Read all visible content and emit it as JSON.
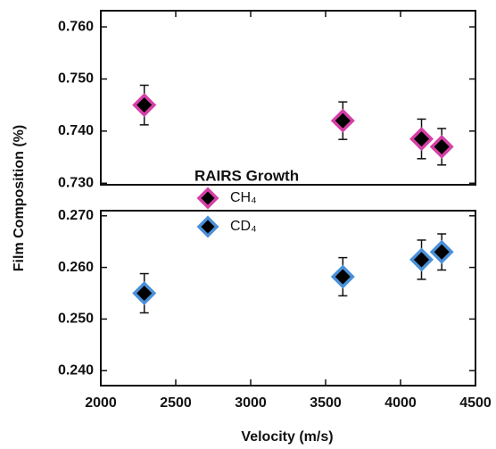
{
  "chart_data": {
    "type": "scatter",
    "x_label": "Velocity (m/s)",
    "y_label": "Film Composition (%)",
    "legend_title": "RAIRS Growth",
    "xlim": [
      2000,
      4500
    ],
    "xticks": [
      2000,
      2500,
      3000,
      3500,
      4000,
      4500
    ],
    "panels": [
      {
        "ylim": [
          0.7297,
          0.7631
        ],
        "yticks": [
          {
            "value": 0.73,
            "label": "0.730"
          },
          {
            "value": 0.74,
            "label": "0.740"
          },
          {
            "value": 0.75,
            "label": "0.750"
          },
          {
            "value": 0.76,
            "label": "0.760"
          }
        ]
      },
      {
        "ylim": [
          0.2371,
          0.271
        ],
        "yticks": [
          {
            "value": 0.24,
            "label": "0.240"
          },
          {
            "value": 0.25,
            "label": "0.250"
          },
          {
            "value": 0.26,
            "label": "0.260"
          },
          {
            "value": 0.27,
            "label": "0.270"
          }
        ]
      }
    ],
    "series": [
      {
        "name": "CH₄",
        "color": "#d63fa6",
        "panel": 0,
        "x": [
          2290,
          3615,
          4140,
          4275
        ],
        "values": [
          0.745,
          0.742,
          0.7385,
          0.737
        ],
        "yerr": [
          0.0038,
          0.0036,
          0.0038,
          0.0035
        ]
      },
      {
        "name": "CD₄",
        "color": "#4a90d9",
        "panel": 1,
        "x": [
          2290,
          3615,
          4140,
          4275
        ],
        "values": [
          0.255,
          0.2582,
          0.2615,
          0.263
        ],
        "yerr": [
          0.0038,
          0.0037,
          0.0038,
          0.0035
        ]
      }
    ]
  }
}
